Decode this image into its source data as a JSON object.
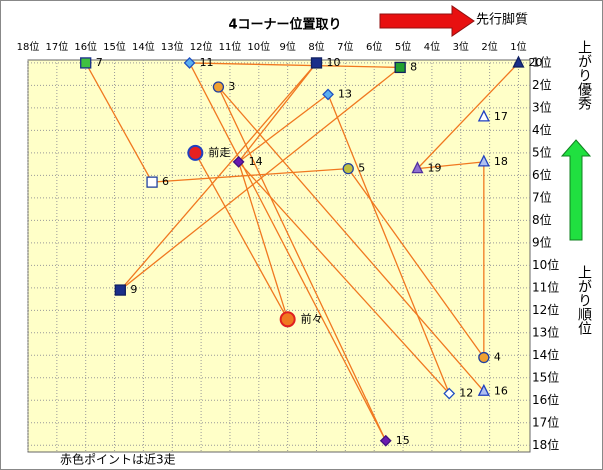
{
  "chart_data": {
    "type": "scatter",
    "title": "4コーナー位置取り",
    "arrow_label": "先行脚質",
    "y_good_label": "上がり優秀",
    "y_label": "上がり順位",
    "footnote": "赤色ポイントは近3走",
    "xlim": [
      18,
      0.6
    ],
    "ylim": [
      0.87,
      18.3
    ],
    "xticks": [
      {
        "value": 18,
        "label": "18位"
      },
      {
        "value": 17,
        "label": "17位"
      },
      {
        "value": 16,
        "label": "16位"
      },
      {
        "value": 15,
        "label": "15位"
      },
      {
        "value": 14,
        "label": "14位"
      },
      {
        "value": 13,
        "label": "13位"
      },
      {
        "value": 12,
        "label": "12位"
      },
      {
        "value": 11,
        "label": "11位"
      },
      {
        "value": 10,
        "label": "10位"
      },
      {
        "value": 9,
        "label": "9位"
      },
      {
        "value": 8,
        "label": "8位"
      },
      {
        "value": 7,
        "label": "7位"
      },
      {
        "value": 6,
        "label": "6位"
      },
      {
        "value": 5,
        "label": "5位"
      },
      {
        "value": 4,
        "label": "4位"
      },
      {
        "value": 3,
        "label": "3位"
      },
      {
        "value": 2,
        "label": "2位"
      },
      {
        "value": 1,
        "label": "1位"
      }
    ],
    "yticks": [
      {
        "value": 1,
        "label": "1位"
      },
      {
        "value": 2,
        "label": "2位"
      },
      {
        "value": 3,
        "label": "3位"
      },
      {
        "value": 4,
        "label": "4位"
      },
      {
        "value": 5,
        "label": "5位"
      },
      {
        "value": 6,
        "label": "6位"
      },
      {
        "value": 7,
        "label": "7位"
      },
      {
        "value": 8,
        "label": "8位"
      },
      {
        "value": 9,
        "label": "9位"
      },
      {
        "value": 10,
        "label": "10位"
      },
      {
        "value": 11,
        "label": "11位"
      },
      {
        "value": 12,
        "label": "12位"
      },
      {
        "value": 13,
        "label": "13位"
      },
      {
        "value": 14,
        "label": "14位"
      },
      {
        "value": 15,
        "label": "15位"
      },
      {
        "value": 16,
        "label": "16位"
      },
      {
        "value": 17,
        "label": "17位"
      },
      {
        "value": 18,
        "label": "18位"
      }
    ],
    "grid": true,
    "line_color": "#f07820",
    "points": [
      {
        "label": "20",
        "x": 1,
        "y": 1,
        "marker": "triangle",
        "fill": "#1a2f8a",
        "edge": "#102060"
      },
      {
        "label": "8",
        "x": 5.1,
        "y": 1.2,
        "marker": "square",
        "fill": "#22a030",
        "edge": "#102060"
      },
      {
        "label": "10",
        "x": 8,
        "y": 1,
        "marker": "square",
        "fill": "#1a2f8a",
        "edge": "#102060"
      },
      {
        "label": "11",
        "x": 12.4,
        "y": 1,
        "marker": "diamond",
        "fill": "#5ab0f0",
        "edge": "#2050c0"
      },
      {
        "label": "7",
        "x": 16,
        "y": 1,
        "marker": "square",
        "fill": "#40c040",
        "edge": "#1a2f8a"
      },
      {
        "label": "3",
        "x": 11.4,
        "y": 2.07,
        "marker": "circle",
        "fill": "#f0a030",
        "edge": "#2040a0"
      },
      {
        "label": "13",
        "x": 7.6,
        "y": 2.4,
        "marker": "diamond",
        "fill": "#5ab0f0",
        "edge": "#2050c0"
      },
      {
        "label": "17",
        "x": 2.2,
        "y": 3.4,
        "marker": "triangle",
        "fill": "#ffffff",
        "edge": "#2040c0"
      },
      {
        "label": "前走",
        "x": 12.2,
        "y": 5,
        "marker": "bigcircle",
        "fill": "#e82020",
        "edge": "#2040c0"
      },
      {
        "label": "14",
        "x": 10.7,
        "y": 5.4,
        "marker": "diamond",
        "fill": "#6a1ab0",
        "edge": "#401080"
      },
      {
        "label": "18",
        "x": 2.2,
        "y": 5.4,
        "marker": "triangle",
        "fill": "#b0c0f0",
        "edge": "#2040c0"
      },
      {
        "label": "19",
        "x": 4.5,
        "y": 5.7,
        "marker": "triangle",
        "fill": "#9070d0",
        "edge": "#5030a0"
      },
      {
        "label": "5",
        "x": 6.9,
        "y": 5.7,
        "marker": "circle",
        "fill": "#c0c040",
        "edge": "#2040a0"
      },
      {
        "label": "6",
        "x": 13.7,
        "y": 6.3,
        "marker": "square",
        "fill": "#ffffff",
        "edge": "#2040a0"
      },
      {
        "label": "9",
        "x": 14.8,
        "y": 11.1,
        "marker": "square",
        "fill": "#1a2f8a",
        "edge": "#102060"
      },
      {
        "label": "前々",
        "x": 9,
        "y": 12.4,
        "marker": "bigcircle",
        "fill": "#f07820",
        "edge": "#e02020"
      },
      {
        "label": "4",
        "x": 2.2,
        "y": 14.1,
        "marker": "circle",
        "fill": "#f0a030",
        "edge": "#2040a0"
      },
      {
        "label": "12",
        "x": 3.4,
        "y": 15.7,
        "marker": "diamond",
        "fill": "#ffffff",
        "edge": "#2050c0"
      },
      {
        "label": "16",
        "x": 2.2,
        "y": 15.6,
        "marker": "triangle",
        "fill": "#b0c0f0",
        "edge": "#2040c0"
      },
      {
        "label": "15",
        "x": 5.6,
        "y": 17.8,
        "marker": "diamond",
        "fill": "#6a1ab0",
        "edge": "#401080"
      }
    ],
    "links": [
      [
        "7",
        "6"
      ],
      [
        "6",
        "5"
      ],
      [
        "5",
        "4"
      ],
      [
        "4",
        "18"
      ],
      [
        "18",
        "19"
      ],
      [
        "19",
        "20"
      ],
      [
        "11",
        "8"
      ],
      [
        "10",
        "9"
      ],
      [
        "8",
        "9"
      ],
      [
        "13",
        "14"
      ],
      [
        "14",
        "12"
      ],
      [
        "3",
        "16"
      ],
      [
        "3",
        "15"
      ],
      [
        "13",
        "12"
      ],
      [
        "前走",
        "前々"
      ],
      [
        "14",
        "前々"
      ],
      [
        "10",
        "14"
      ],
      [
        "11",
        "15"
      ]
    ]
  }
}
